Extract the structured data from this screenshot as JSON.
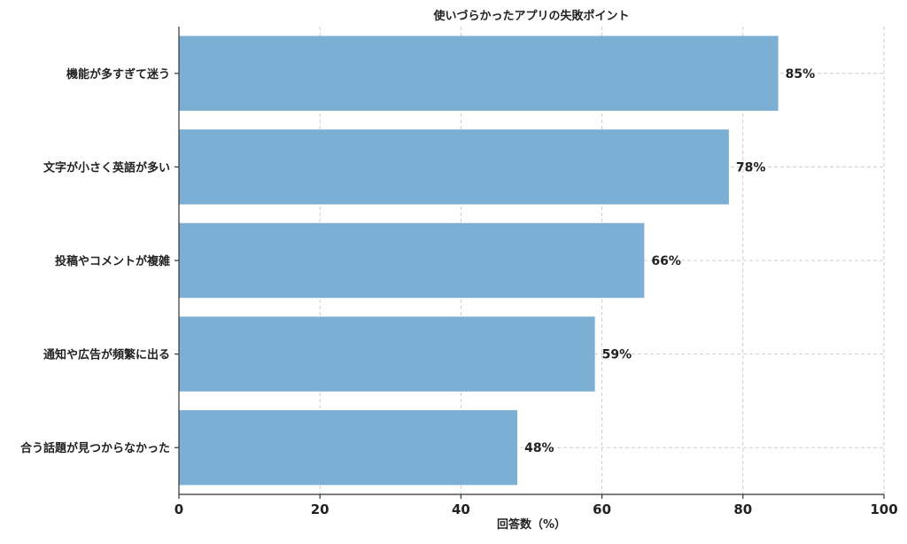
{
  "chart_data": {
    "type": "bar",
    "orientation": "horizontal",
    "title": "使いづらかったアプリの失敗ポイント",
    "xlabel": "回答数（%）",
    "ylabel": "",
    "categories": [
      "機能が多すぎて迷う",
      "文字が小さく英語が多い",
      "投稿やコメントが複雑",
      "通知や広告が頻繁に出る",
      "合う話題が見つからなかった"
    ],
    "values": [
      85,
      78,
      66,
      59,
      48
    ],
    "data_labels": [
      "85%",
      "78%",
      "66%",
      "59%",
      "48%"
    ],
    "xlim": [
      0,
      100
    ],
    "xticks": [
      0,
      20,
      40,
      60,
      80,
      100
    ],
    "grid": true,
    "bar_color": "#7bafd4"
  }
}
